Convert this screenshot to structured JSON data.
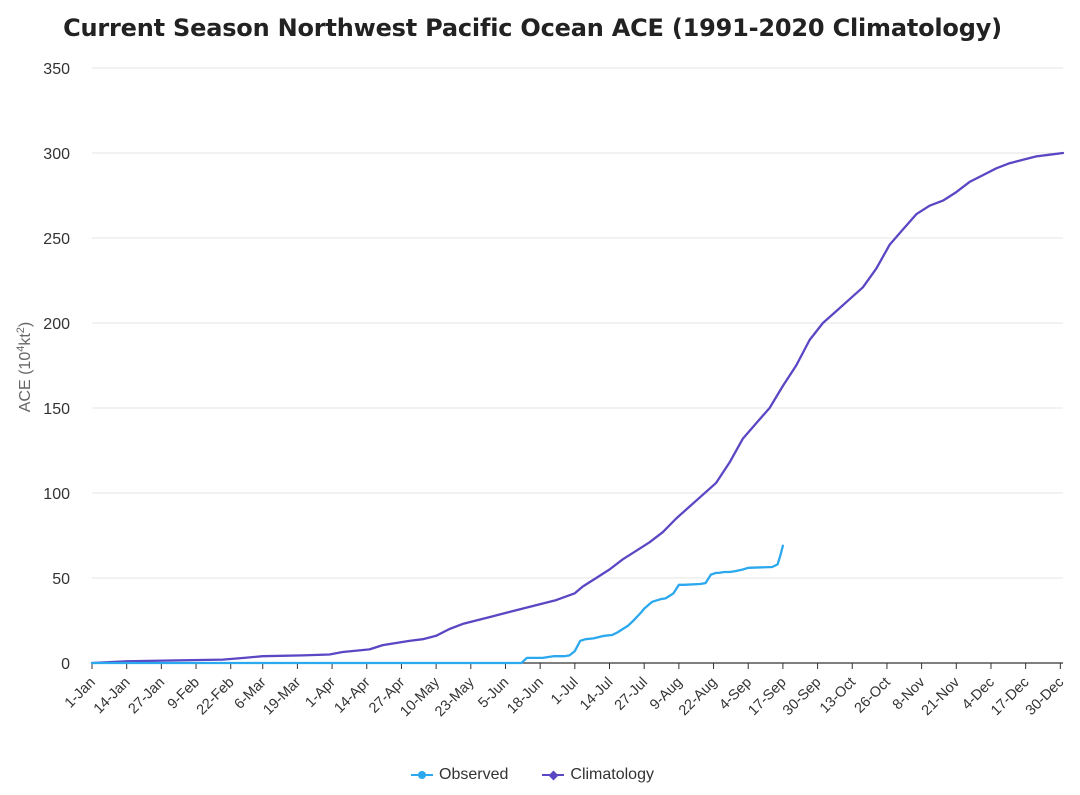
{
  "colors": {
    "observed": "#2ba8ee",
    "climatology": "#5b46c4",
    "grid": "#e6e6e6",
    "axis": "#333333"
  },
  "chart_data": {
    "type": "line",
    "title": "Current Season Northwest Pacific Ocean ACE (1991-2020 Climatology)",
    "ylabel_base": "ACE (10",
    "ylabel_sup1": "4",
    "ylabel_mid": "kt",
    "ylabel_sup2": "2",
    "ylabel_end": ")",
    "ylim": [
      0,
      350
    ],
    "yticks": [
      0,
      50,
      100,
      150,
      200,
      250,
      300,
      350
    ],
    "xlim": [
      1,
      365
    ],
    "x_unit": "day of year",
    "grid": true,
    "legend_position": "bottom-center",
    "x_ticks": [
      {
        "day": 1,
        "label": "1-Jan"
      },
      {
        "day": 14,
        "label": "14-Jan"
      },
      {
        "day": 27,
        "label": "27-Jan"
      },
      {
        "day": 40,
        "label": "9-Feb"
      },
      {
        "day": 53,
        "label": "22-Feb"
      },
      {
        "day": 65,
        "label": "6-Mar"
      },
      {
        "day": 78,
        "label": "19-Mar"
      },
      {
        "day": 91,
        "label": "1-Apr"
      },
      {
        "day": 104,
        "label": "14-Apr"
      },
      {
        "day": 117,
        "label": "27-Apr"
      },
      {
        "day": 130,
        "label": "10-May"
      },
      {
        "day": 143,
        "label": "23-May"
      },
      {
        "day": 156,
        "label": "5-Jun"
      },
      {
        "day": 169,
        "label": "18-Jun"
      },
      {
        "day": 182,
        "label": "1-Jul"
      },
      {
        "day": 195,
        "label": "14-Jul"
      },
      {
        "day": 208,
        "label": "27-Jul"
      },
      {
        "day": 221,
        "label": "9-Aug"
      },
      {
        "day": 234,
        "label": "22-Aug"
      },
      {
        "day": 247,
        "label": "4-Sep"
      },
      {
        "day": 260,
        "label": "17-Sep"
      },
      {
        "day": 273,
        "label": "30-Sep"
      },
      {
        "day": 286,
        "label": "13-Oct"
      },
      {
        "day": 299,
        "label": "26-Oct"
      },
      {
        "day": 312,
        "label": "8-Nov"
      },
      {
        "day": 325,
        "label": "21-Nov"
      },
      {
        "day": 338,
        "label": "4-Dec"
      },
      {
        "day": 351,
        "label": "17-Dec"
      },
      {
        "day": 364,
        "label": "30-Dec"
      }
    ],
    "series": [
      {
        "name": "Observed",
        "color": "#2ba8ee",
        "marker": "circle",
        "x": [
          1,
          162,
          164,
          166,
          170,
          172,
          174,
          178,
          180,
          182,
          184,
          186,
          189,
          193,
          196,
          198,
          200,
          202,
          204,
          207,
          208,
          211,
          214,
          216,
          218,
          219,
          221,
          223,
          229,
          231,
          233,
          235,
          236,
          238,
          240,
          242,
          245,
          247,
          256,
          258,
          259,
          260
        ],
        "y": [
          0,
          0,
          3,
          3,
          3,
          3.5,
          4,
          4,
          4.5,
          7,
          13,
          14,
          14.5,
          16,
          16.5,
          18,
          20,
          22,
          25,
          30,
          32,
          36,
          37.5,
          38,
          40,
          41,
          46,
          46,
          46.5,
          47,
          52,
          53,
          53,
          53.5,
          53.5,
          54,
          55,
          56,
          56.5,
          58,
          63,
          69
        ]
      },
      {
        "name": "Climatology",
        "color": "#5b46c4",
        "marker": "diamond",
        "x": [
          1,
          14,
          30,
          50,
          58,
          65,
          80,
          90,
          95,
          105,
          110,
          120,
          125,
          130,
          135,
          140,
          150,
          160,
          170,
          175,
          182,
          185,
          190,
          195,
          200,
          205,
          210,
          215,
          220,
          225,
          230,
          235,
          240,
          245,
          250,
          255,
          260,
          265,
          270,
          275,
          280,
          285,
          290,
          295,
          300,
          305,
          310,
          315,
          320,
          325,
          330,
          335,
          340,
          345,
          350,
          355,
          360,
          365
        ],
        "y": [
          0,
          1,
          1.5,
          2,
          3,
          4,
          4.5,
          5,
          6.5,
          8,
          10.5,
          13,
          14,
          16,
          20,
          23,
          27,
          31,
          35,
          37,
          41,
          45,
          50,
          55,
          61,
          66,
          71,
          77,
          85,
          92,
          99,
          106,
          118,
          132,
          141,
          150,
          163,
          175,
          190,
          200,
          207,
          214,
          221,
          232,
          246,
          255,
          264,
          269,
          272,
          277,
          283,
          287,
          291,
          294,
          296,
          298,
          299,
          300
        ]
      }
    ]
  }
}
